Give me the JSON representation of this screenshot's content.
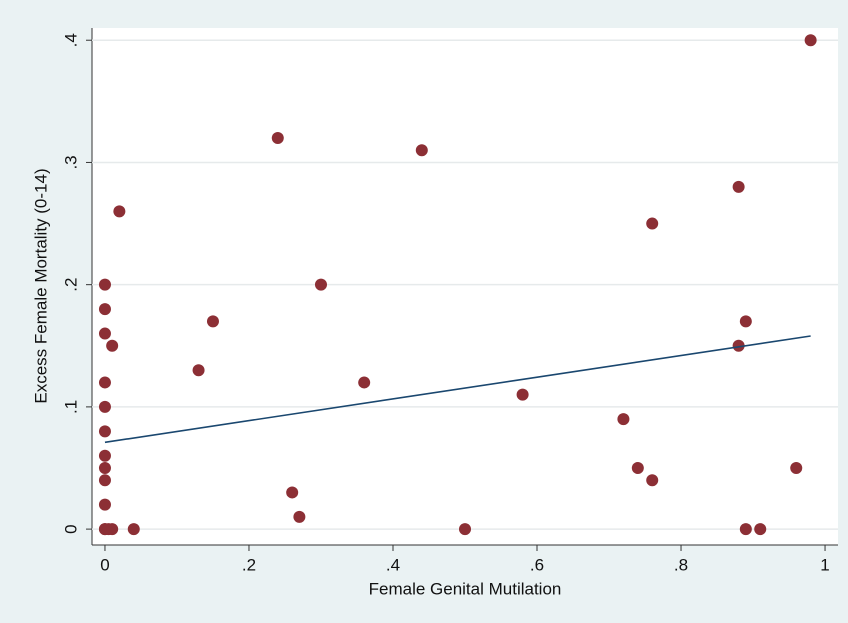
{
  "chart_data": {
    "type": "scatter",
    "x_label": "Female Genital Mutilation",
    "y_label": "Excess Female Mortality (0-14)",
    "x": [
      0,
      0,
      0.005,
      0.01,
      0.04,
      0,
      0,
      0,
      0,
      0,
      0,
      0.01,
      0,
      0,
      0,
      0,
      0.02,
      0.13,
      0.15,
      0.24,
      0.26,
      0.27,
      0.3,
      0.36,
      0.44,
      0.5,
      0.58,
      0.72,
      0.74,
      0.76,
      0.76,
      0.88,
      0.88,
      0.89,
      0.89,
      0.91,
      0.96,
      0.98
    ],
    "values": [
      0,
      0,
      0,
      0,
      0,
      0.02,
      0.04,
      0.05,
      0.06,
      0.08,
      0.1,
      0.15,
      0.12,
      0.16,
      0.18,
      0.2,
      0.26,
      0.13,
      0.17,
      0.32,
      0.03,
      0.01,
      0.2,
      0.12,
      0.31,
      0,
      0.11,
      0.09,
      0.05,
      0.04,
      0.25,
      0.28,
      0.15,
      0.17,
      0,
      0,
      0.05,
      0.4
    ],
    "color": "#8c2f35",
    "fit": {
      "x": [
        0,
        0.98
      ],
      "values": [
        0.071,
        0.158
      ],
      "color": "#1a476f"
    },
    "xlim": [
      -0.018,
      1.018
    ],
    "ylim": [
      -0.013,
      0.41
    ],
    "xticks": [
      0,
      {
        "value": 0.2,
        "label": ".2"
      },
      {
        "value": 0.4,
        "label": ".4"
      },
      {
        "value": 0.6,
        "label": ".6"
      },
      {
        "value": 0.8,
        "label": ".8"
      },
      1
    ],
    "yticks": [
      0,
      {
        "value": 0.1,
        "label": ".1"
      },
      {
        "value": 0.2,
        "label": ".2"
      },
      {
        "value": 0.3,
        "label": ".3"
      },
      {
        "value": 0.4,
        "label": ".4"
      }
    ],
    "grid": true
  }
}
